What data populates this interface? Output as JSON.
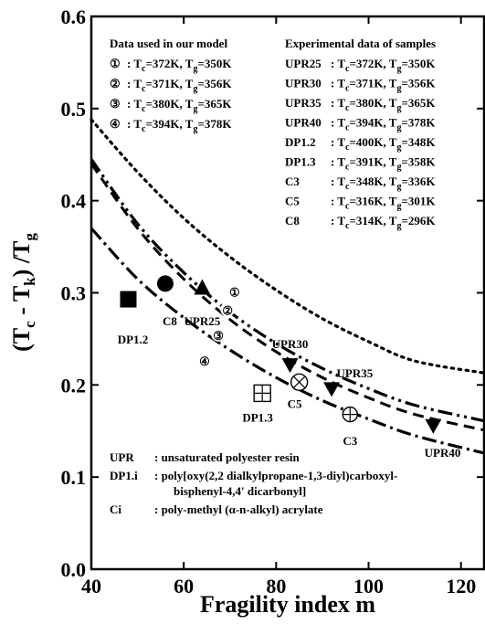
{
  "chart_data": {
    "type": "scatter",
    "title": "",
    "xlabel": "Fragility index m",
    "ylabel": {
      "main": "(T",
      "sub_c": "c",
      "mid": " - T",
      "sub_k": "k",
      "close": ") /T",
      "sub_g": "g"
    },
    "xlim": [
      40,
      125
    ],
    "ylim": [
      0.0,
      0.6
    ],
    "x_ticks": [
      40,
      60,
      80,
      100,
      120
    ],
    "y_ticks": [
      "0.0",
      "0.1",
      "0.2",
      "0.3",
      "0.4",
      "0.5",
      "0.6"
    ],
    "grid": false,
    "model_curves": [
      {
        "name": "①",
        "style": "dotted",
        "x": [
          40,
          50,
          60,
          70,
          80,
          90,
          100,
          110,
          125
        ],
        "y": [
          0.488,
          0.431,
          0.381,
          0.339,
          0.303,
          0.272,
          0.247,
          0.226,
          0.213
        ]
      },
      {
        "name": "②",
        "style": "dash-dot-dot",
        "x": [
          40,
          50,
          60,
          70,
          80,
          90,
          100,
          110,
          125
        ],
        "y": [
          0.445,
          0.375,
          0.322,
          0.279,
          0.245,
          0.218,
          0.196,
          0.178,
          0.161
        ]
      },
      {
        "name": "③",
        "style": "dashed",
        "x": [
          40,
          50,
          60,
          70,
          80,
          90,
          100,
          110,
          125
        ],
        "y": [
          0.44,
          0.37,
          0.315,
          0.271,
          0.236,
          0.208,
          0.186,
          0.168,
          0.151
        ]
      },
      {
        "name": "④",
        "style": "dash-dot",
        "x": [
          40,
          50,
          60,
          70,
          80,
          90,
          100,
          110,
          125
        ],
        "y": [
          0.37,
          0.315,
          0.273,
          0.238,
          0.208,
          0.183,
          0.163,
          0.145,
          0.126
        ]
      }
    ],
    "curve_labels": [
      {
        "text": "①",
        "x": 71,
        "y": 0.302
      },
      {
        "text": "②",
        "x": 69.5,
        "y": 0.282
      },
      {
        "text": "③",
        "x": 67.5,
        "y": 0.255
      },
      {
        "text": "④",
        "x": 64.5,
        "y": 0.227
      }
    ],
    "points": [
      {
        "name": "UPR25",
        "marker": "triangle-up",
        "x": 64,
        "y": 0.305,
        "label_x": 64,
        "label_y": 0.27
      },
      {
        "name": "UPR30",
        "marker": "triangle-down",
        "x": 83,
        "y": 0.222,
        "label_x": 83,
        "label_y": 0.245
      },
      {
        "name": "UPR35",
        "marker": "triangle-down",
        "x": 92,
        "y": 0.196,
        "label_x": 97,
        "label_y": 0.213
      },
      {
        "name": "UPR40",
        "marker": "triangle-down",
        "x": 114,
        "y": 0.156,
        "label_x": 116,
        "label_y": 0.127
      },
      {
        "name": "DP1.2",
        "marker": "square-filled",
        "x": 48,
        "y": 0.293,
        "label_x": 49,
        "label_y": 0.25
      },
      {
        "name": "DP1.3",
        "marker": "square-open-cross",
        "x": 77,
        "y": 0.191,
        "label_x": 76,
        "label_y": 0.165
      },
      {
        "name": "C8",
        "marker": "circle-filled",
        "x": 56,
        "y": 0.31,
        "label_x": 57,
        "label_y": 0.27
      },
      {
        "name": "C5",
        "marker": "circle-open-x",
        "x": 85,
        "y": 0.203,
        "label_x": 84,
        "label_y": 0.18
      },
      {
        "name": "C3",
        "marker": "circle-open-plus",
        "x": 96,
        "y": 0.168,
        "label_x": 96,
        "label_y": 0.14
      }
    ],
    "legend_model": {
      "title": "Data used in our model",
      "entries": [
        {
          "num": "①",
          "tc": "372K",
          "tg": "350K"
        },
        {
          "num": "②",
          "tc": "371K",
          "tg": "356K"
        },
        {
          "num": "③",
          "tc": "380K",
          "tg": "365K"
        },
        {
          "num": "④",
          "tc": "394K",
          "tg": "378K"
        }
      ]
    },
    "legend_experimental": {
      "title": "Experimental data of samples",
      "entries": [
        {
          "name": "UPR25",
          "tc": "372K",
          "tg": "350K"
        },
        {
          "name": "UPR30",
          "tc": "371K",
          "tg": "356K"
        },
        {
          "name": "UPR35",
          "tc": "380K",
          "tg": "365K"
        },
        {
          "name": "UPR40",
          "tc": "394K",
          "tg": "378K"
        },
        {
          "name": "DP1.2",
          "tc": "400K",
          "tg": "348K"
        },
        {
          "name": "DP1.3",
          "tc": "391K",
          "tg": "358K"
        },
        {
          "name": "C3",
          "tc": "348K",
          "tg": "336K"
        },
        {
          "name": "C5",
          "tc": "316K",
          "tg": "301K"
        },
        {
          "name": "C8",
          "tc": "314K",
          "tg": "296K"
        }
      ]
    },
    "annotations": [
      {
        "abbr": "UPR",
        "desc": ": unsaturated polyester resin"
      },
      {
        "abbr": "DP1.i",
        "desc": ": poly[oxy(2,2 dialkylpropane-1,3-diyl)carboxyl-"
      },
      {
        "abbr": "",
        "desc": "bisphenyl-4,4' dicarbonyl]"
      },
      {
        "abbr": "Ci",
        "desc": ":  poly-methyl (α-n-alkyl) acrylate"
      }
    ]
  }
}
